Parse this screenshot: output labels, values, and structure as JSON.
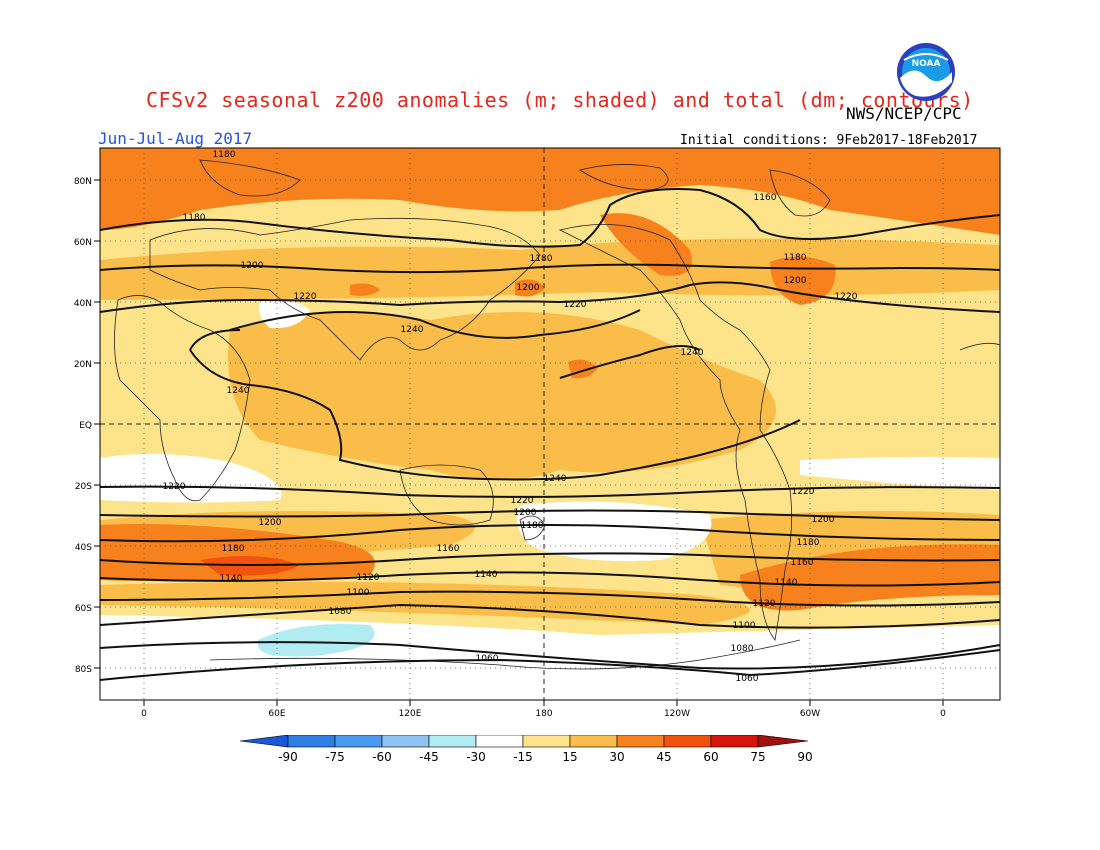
{
  "header": {
    "title": "CFSv2 seasonal z200 anomalies (m; shaded) and total (dm; contours)",
    "agency": "NWS/NCEP/CPC",
    "season": "Jun-Jul-Aug 2017",
    "initial_conditions": "Initial conditions: 9Feb2017-18Feb2017",
    "logo_text": "NOAA"
  },
  "map": {
    "lat_labels": [
      "80N",
      "60N",
      "40N",
      "20N",
      "EQ",
      "20S",
      "40S",
      "60S",
      "80S"
    ],
    "lon_labels": [
      "0",
      "60E",
      "120E",
      "180",
      "120W",
      "60W",
      "0"
    ],
    "contour_labels": [
      {
        "text": "1180",
        "lon": 0,
        "lat": 0
      },
      {
        "text": "1180",
        "lon": 0,
        "lat": 0
      },
      {
        "text": "1200",
        "lon": 0,
        "lat": 0
      },
      {
        "text": "1220",
        "lon": 0,
        "lat": 0
      },
      {
        "text": "1240",
        "lon": 0,
        "lat": 0
      },
      {
        "text": "1240",
        "lon": 0,
        "lat": 0
      },
      {
        "text": "1180",
        "lon": 0,
        "lat": 0
      },
      {
        "text": "1200",
        "lon": 0,
        "lat": 0
      },
      {
        "text": "1220",
        "lon": 0,
        "lat": 0
      },
      {
        "text": "1160",
        "lon": 0,
        "lat": 0
      },
      {
        "text": "1180",
        "lon": 0,
        "lat": 0
      },
      {
        "text": "1200",
        "lon": 0,
        "lat": 0
      },
      {
        "text": "1220",
        "lon": 0,
        "lat": 0
      },
      {
        "text": "1240",
        "lon": 0,
        "lat": 0
      },
      {
        "text": "1240",
        "lon": 0,
        "lat": 0
      },
      {
        "text": "1220",
        "lon": 0,
        "lat": 0
      },
      {
        "text": "1200",
        "lon": 0,
        "lat": 0
      },
      {
        "text": "1180",
        "lon": 0,
        "lat": 0
      },
      {
        "text": "1140",
        "lon": 0,
        "lat": 0
      },
      {
        "text": "1120",
        "lon": 0,
        "lat": 0
      },
      {
        "text": "1100",
        "lon": 0,
        "lat": 0
      },
      {
        "text": "1080",
        "lon": 0,
        "lat": 0
      },
      {
        "text": "1220",
        "lon": 0,
        "lat": 0
      },
      {
        "text": "1200",
        "lon": 0,
        "lat": 0
      },
      {
        "text": "1180",
        "lon": 0,
        "lat": 0
      },
      {
        "text": "1160",
        "lon": 0,
        "lat": 0
      },
      {
        "text": "1140",
        "lon": 0,
        "lat": 0
      },
      {
        "text": "1060",
        "lon": 0,
        "lat": 0
      },
      {
        "text": "1220",
        "lon": 0,
        "lat": 0
      },
      {
        "text": "1200",
        "lon": 0,
        "lat": 0
      },
      {
        "text": "1180",
        "lon": 0,
        "lat": 0
      },
      {
        "text": "1160",
        "lon": 0,
        "lat": 0
      },
      {
        "text": "1140",
        "lon": 0,
        "lat": 0
      },
      {
        "text": "1120",
        "lon": 0,
        "lat": 0
      },
      {
        "text": "1100",
        "lon": 0,
        "lat": 0
      },
      {
        "text": "1080",
        "lon": 0,
        "lat": 0
      },
      {
        "text": "1060",
        "lon": 0,
        "lat": 0
      }
    ]
  },
  "colorbar": {
    "labels": [
      "-90",
      "-75",
      "-60",
      "-45",
      "-30",
      "-15",
      "15",
      "30",
      "45",
      "60",
      "75",
      "90"
    ],
    "colors": [
      "#1a57d6",
      "#2f7ee6",
      "#4a9bef",
      "#8fc3f3",
      "#b0ecf1",
      "#ffffff",
      "#fde48a",
      "#fbbd4a",
      "#f7811c",
      "#f2510e",
      "#d8140e",
      "#a30f0f"
    ]
  }
}
